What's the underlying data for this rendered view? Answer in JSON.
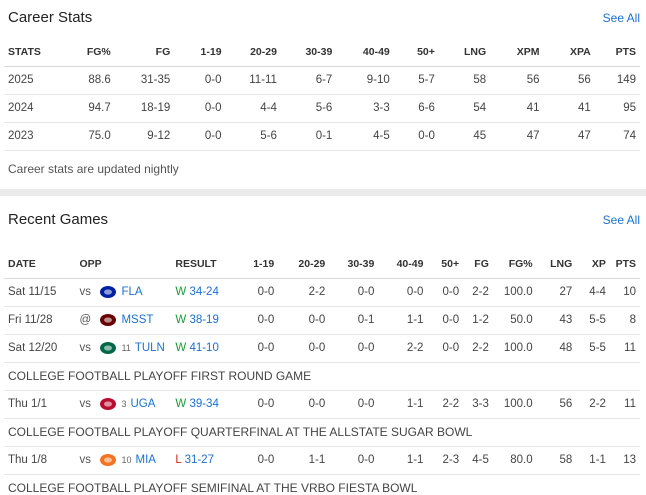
{
  "career": {
    "title": "Career Stats",
    "see_all": "See All",
    "headers": [
      "STATS",
      "FG%",
      "FG",
      "1-19",
      "20-29",
      "30-39",
      "40-49",
      "50+",
      "LNG",
      "XPM",
      "XPA",
      "PTS"
    ],
    "rows": [
      [
        "2025",
        "88.6",
        "31-35",
        "0-0",
        "11-11",
        "6-7",
        "9-10",
        "5-7",
        "58",
        "56",
        "56",
        "149"
      ],
      [
        "2024",
        "94.7",
        "18-19",
        "0-0",
        "4-4",
        "5-6",
        "3-3",
        "6-6",
        "54",
        "41",
        "41",
        "95"
      ],
      [
        "2023",
        "75.0",
        "9-12",
        "0-0",
        "5-6",
        "0-1",
        "4-5",
        "0-0",
        "45",
        "47",
        "47",
        "74"
      ]
    ],
    "note": "Career stats are updated nightly"
  },
  "recent": {
    "title": "Recent Games",
    "see_all": "See All",
    "headers": [
      "DATE",
      "OPP",
      "RESULT",
      "1-19",
      "20-29",
      "30-39",
      "40-49",
      "50+",
      "FG",
      "FG%",
      "LNG",
      "XP",
      "PTS"
    ],
    "games": [
      {
        "date": "Sat 11/15",
        "vs": "vs",
        "rank": "",
        "opp": "FLA",
        "logo_color": "#0021a5",
        "wl": "W",
        "score": "34-24",
        "s1": "0-0",
        "s2": "2-2",
        "s3": "0-0",
        "s4": "0-0",
        "s5": "0-0",
        "fg": "2-2",
        "pct": "100.0",
        "lng": "27",
        "xp": "4-4",
        "pts": "10",
        "event": ""
      },
      {
        "date": "Fri 11/28",
        "vs": "@",
        "rank": "",
        "opp": "MSST",
        "logo_color": "#660000",
        "wl": "W",
        "score": "38-19",
        "s1": "0-0",
        "s2": "0-0",
        "s3": "0-1",
        "s4": "1-1",
        "s5": "0-0",
        "fg": "1-2",
        "pct": "50.0",
        "lng": "43",
        "xp": "5-5",
        "pts": "8",
        "event": ""
      },
      {
        "date": "Sat 12/20",
        "vs": "vs",
        "rank": "11",
        "opp": "TULN",
        "logo_color": "#006747",
        "wl": "W",
        "score": "41-10",
        "s1": "0-0",
        "s2": "0-0",
        "s3": "0-0",
        "s4": "2-2",
        "s5": "0-0",
        "fg": "2-2",
        "pct": "100.0",
        "lng": "48",
        "xp": "5-5",
        "pts": "11",
        "event": "COLLEGE FOOTBALL PLAYOFF FIRST ROUND GAME"
      },
      {
        "date": "Thu 1/1",
        "vs": "vs",
        "rank": "3",
        "opp": "UGA",
        "logo_color": "#ba0c2f",
        "wl": "W",
        "score": "39-34",
        "s1": "0-0",
        "s2": "0-0",
        "s3": "0-0",
        "s4": "1-1",
        "s5": "2-2",
        "fg": "3-3",
        "pct": "100.0",
        "lng": "56",
        "xp": "2-2",
        "pts": "11",
        "event": "COLLEGE FOOTBALL PLAYOFF QUARTERFINAL AT THE ALLSTATE SUGAR BOWL"
      },
      {
        "date": "Thu 1/8",
        "vs": "vs",
        "rank": "10",
        "opp": "MIA",
        "logo_color": "#f47321",
        "wl": "L",
        "score": "31-27",
        "s1": "0-0",
        "s2": "1-1",
        "s3": "0-0",
        "s4": "1-1",
        "s5": "2-3",
        "fg": "4-5",
        "pct": "80.0",
        "lng": "58",
        "xp": "1-1",
        "pts": "13",
        "event": "COLLEGE FOOTBALL PLAYOFF SEMIFINAL AT THE VRBO FIESTA BOWL"
      }
    ]
  }
}
